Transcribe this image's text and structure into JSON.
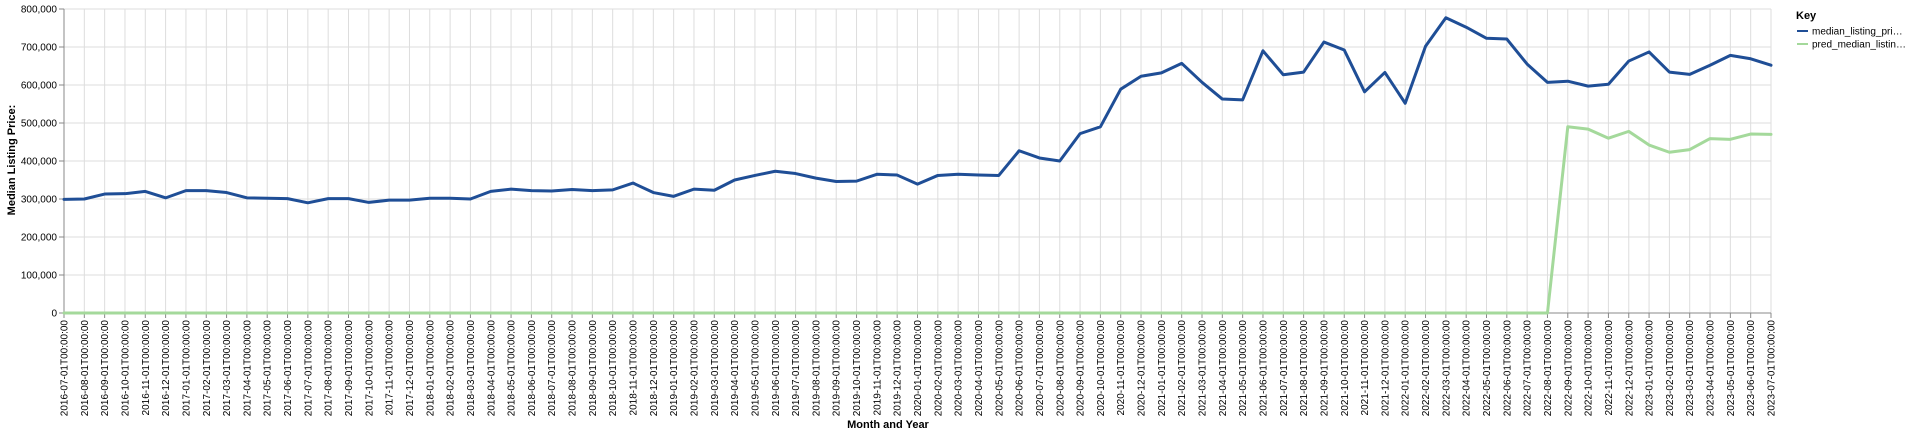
{
  "chart_data": {
    "type": "line",
    "xlabel": "Month and Year",
    "ylabel": "Median Listing Price:",
    "ylim": [
      0,
      800000
    ],
    "yticks": [
      "0",
      "100,000",
      "200,000",
      "300,000",
      "400,000",
      "500,000",
      "600,000",
      "700,000",
      "800,000"
    ],
    "grid": true,
    "legend_title": "Key",
    "legend_position": "right",
    "x": [
      "2016-07-01T00:00:00",
      "2016-08-01T00:00:00",
      "2016-09-01T00:00:00",
      "2016-10-01T00:00:00",
      "2016-11-01T00:00:00",
      "2016-12-01T00:00:00",
      "2017-01-01T00:00:00",
      "2017-02-01T00:00:00",
      "2017-03-01T00:00:00",
      "2017-04-01T00:00:00",
      "2017-05-01T00:00:00",
      "2017-06-01T00:00:00",
      "2017-07-01T00:00:00",
      "2017-08-01T00:00:00",
      "2017-09-01T00:00:00",
      "2017-10-01T00:00:00",
      "2017-11-01T00:00:00",
      "2017-12-01T00:00:00",
      "2018-01-01T00:00:00",
      "2018-02-01T00:00:00",
      "2018-03-01T00:00:00",
      "2018-04-01T00:00:00",
      "2018-05-01T00:00:00",
      "2018-06-01T00:00:00",
      "2018-07-01T00:00:00",
      "2018-08-01T00:00:00",
      "2018-09-01T00:00:00",
      "2018-10-01T00:00:00",
      "2018-11-01T00:00:00",
      "2018-12-01T00:00:00",
      "2019-01-01T00:00:00",
      "2019-02-01T00:00:00",
      "2019-03-01T00:00:00",
      "2019-04-01T00:00:00",
      "2019-05-01T00:00:00",
      "2019-06-01T00:00:00",
      "2019-07-01T00:00:00",
      "2019-08-01T00:00:00",
      "2019-09-01T00:00:00",
      "2019-10-01T00:00:00",
      "2019-11-01T00:00:00",
      "2019-12-01T00:00:00",
      "2020-01-01T00:00:00",
      "2020-02-01T00:00:00",
      "2020-03-01T00:00:00",
      "2020-04-01T00:00:00",
      "2020-05-01T00:00:00",
      "2020-06-01T00:00:00",
      "2020-07-01T00:00:00",
      "2020-08-01T00:00:00",
      "2020-09-01T00:00:00",
      "2020-10-01T00:00:00",
      "2020-11-01T00:00:00",
      "2020-12-01T00:00:00",
      "2021-01-01T00:00:00",
      "2021-02-01T00:00:00",
      "2021-03-01T00:00:00",
      "2021-04-01T00:00:00",
      "2021-05-01T00:00:00",
      "2021-06-01T00:00:00",
      "2021-07-01T00:00:00",
      "2021-08-01T00:00:00",
      "2021-09-01T00:00:00",
      "2021-10-01T00:00:00",
      "2021-11-01T00:00:00",
      "2021-12-01T00:00:00",
      "2022-01-01T00:00:00",
      "2022-02-01T00:00:00",
      "2022-03-01T00:00:00",
      "2022-04-01T00:00:00",
      "2022-05-01T00:00:00",
      "2022-06-01T00:00:00",
      "2022-07-01T00:00:00",
      "2022-08-01T00:00:00",
      "2022-09-01T00:00:00",
      "2022-10-01T00:00:00",
      "2022-11-01T00:00:00",
      "2022-12-01T00:00:00",
      "2023-01-01T00:00:00",
      "2023-02-01T00:00:00",
      "2023-03-01T00:00:00",
      "2023-04-01T00:00:00",
      "2023-05-01T00:00:00",
      "2023-06-01T00:00:00",
      "2023-07-01T00:00:00"
    ],
    "series": [
      {
        "name": "median_listing_pri…",
        "color": "#1f4e96",
        "values": [
          299000,
          300000,
          313000,
          314000,
          320000,
          303000,
          322000,
          322000,
          317000,
          303000,
          302000,
          301000,
          290000,
          301000,
          301000,
          291000,
          297000,
          297000,
          302000,
          302000,
          300000,
          320000,
          326000,
          322000,
          321000,
          325000,
          322000,
          324000,
          342000,
          317000,
          307000,
          326000,
          323000,
          350000,
          362000,
          373000,
          367000,
          355000,
          346000,
          347000,
          365000,
          363000,
          339000,
          362000,
          365000,
          363000,
          362000,
          427000,
          408000,
          400000,
          472000,
          490000,
          589000,
          623000,
          632000,
          657000,
          607000,
          563000,
          561000,
          690000,
          627000,
          634000,
          713000,
          692000,
          582000,
          633000,
          552000,
          702000,
          777000,
          752000,
          723000,
          721000,
          655000,
          607000,
          610000,
          597000,
          602000,
          663000,
          687000,
          634000,
          628000,
          652000,
          678000,
          669000,
          652000
        ]
      },
      {
        "name": "pred_median_listin…",
        "color": "#a4d99b",
        "values": [
          0,
          0,
          0,
          0,
          0,
          0,
          0,
          0,
          0,
          0,
          0,
          0,
          0,
          0,
          0,
          0,
          0,
          0,
          0,
          0,
          0,
          0,
          0,
          0,
          0,
          0,
          0,
          0,
          0,
          0,
          0,
          0,
          0,
          0,
          0,
          0,
          0,
          0,
          0,
          0,
          0,
          0,
          0,
          0,
          0,
          0,
          0,
          0,
          0,
          0,
          0,
          0,
          0,
          0,
          0,
          0,
          0,
          0,
          0,
          0,
          0,
          0,
          0,
          0,
          0,
          0,
          0,
          0,
          0,
          0,
          0,
          0,
          0,
          0,
          490000,
          484000,
          460000,
          478000,
          442000,
          423000,
          430000,
          459000,
          457000,
          471000,
          470000
        ]
      }
    ]
  }
}
